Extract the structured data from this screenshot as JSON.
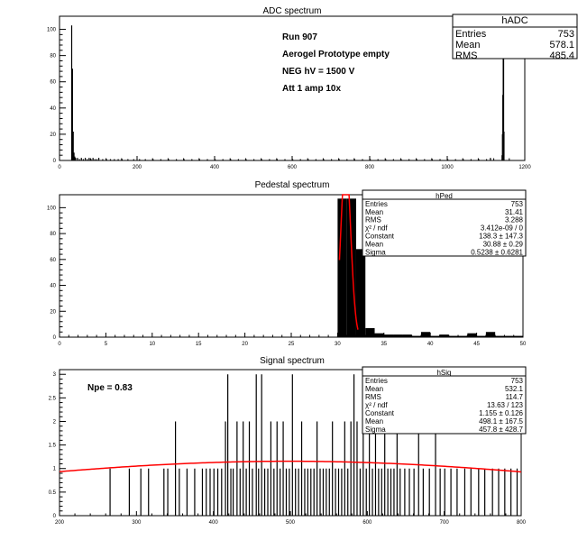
{
  "chart_data": [
    {
      "type": "bar",
      "title": "ADC spectrum",
      "xlim": [
        0,
        1200
      ],
      "ylim": [
        0,
        110
      ],
      "xticks": [
        0,
        200,
        400,
        600,
        800,
        1000,
        1200
      ],
      "yticks": [
        0,
        20,
        40,
        60,
        80,
        100
      ],
      "annotations": [
        "Run  907",
        "Aerogel Prototype empty",
        "NEG hV = 1500 V",
        "Att 1 amp 10x"
      ],
      "stats": {
        "name": "hADC",
        "rows": [
          [
            "Entries",
            "753"
          ],
          [
            "Mean",
            "578.1"
          ],
          [
            "RMS",
            "485.4"
          ]
        ]
      },
      "bins": [
        [
          30,
          103
        ],
        [
          32,
          70
        ],
        [
          34,
          22
        ],
        [
          36,
          6
        ],
        [
          38,
          3
        ],
        [
          40,
          2
        ],
        [
          45,
          2
        ],
        [
          50,
          1
        ],
        [
          55,
          2
        ],
        [
          60,
          1
        ],
        [
          65,
          2
        ],
        [
          70,
          1
        ],
        [
          75,
          2
        ],
        [
          80,
          1
        ],
        [
          85,
          2
        ],
        [
          90,
          1
        ],
        [
          95,
          1
        ],
        [
          100,
          2
        ],
        [
          110,
          1
        ],
        [
          120,
          1
        ],
        [
          130,
          1
        ],
        [
          140,
          1
        ],
        [
          150,
          1
        ],
        [
          160,
          1
        ],
        [
          175,
          1
        ],
        [
          190,
          1
        ],
        [
          205,
          1
        ],
        [
          220,
          1
        ],
        [
          240,
          1
        ],
        [
          260,
          1
        ],
        [
          280,
          1
        ],
        [
          300,
          1
        ],
        [
          320,
          1
        ],
        [
          340,
          1
        ],
        [
          360,
          1
        ],
        [
          380,
          1
        ],
        [
          400,
          1
        ],
        [
          420,
          1
        ],
        [
          440,
          1
        ],
        [
          460,
          1
        ],
        [
          480,
          1
        ],
        [
          500,
          1
        ],
        [
          520,
          1
        ],
        [
          540,
          1
        ],
        [
          560,
          1
        ],
        [
          580,
          1
        ],
        [
          600,
          1
        ],
        [
          620,
          1
        ],
        [
          640,
          1
        ],
        [
          660,
          1
        ],
        [
          680,
          1
        ],
        [
          700,
          1
        ],
        [
          720,
          1
        ],
        [
          740,
          1
        ],
        [
          760,
          1
        ],
        [
          780,
          1
        ],
        [
          800,
          1
        ],
        [
          820,
          1
        ],
        [
          840,
          1
        ],
        [
          860,
          1
        ],
        [
          880,
          1
        ],
        [
          900,
          1
        ],
        [
          920,
          1
        ],
        [
          940,
          1
        ],
        [
          960,
          1
        ],
        [
          980,
          1
        ],
        [
          1000,
          1
        ],
        [
          1020,
          1
        ],
        [
          1040,
          1
        ],
        [
          1060,
          1
        ],
        [
          1080,
          1
        ],
        [
          1100,
          1
        ],
        [
          1110,
          2
        ],
        [
          1140,
          4
        ],
        [
          1141,
          20
        ],
        [
          1142,
          50
        ],
        [
          1143,
          98
        ],
        [
          1144,
          82
        ],
        [
          1145,
          22
        ]
      ]
    },
    {
      "type": "bar",
      "title": "Pedestal spectrum",
      "xlim": [
        0,
        50
      ],
      "ylim": [
        0,
        110
      ],
      "xticks": [
        0,
        5,
        10,
        15,
        20,
        25,
        30,
        35,
        40,
        45,
        50
      ],
      "yticks": [
        0,
        20,
        40,
        60,
        80,
        100
      ],
      "stats": {
        "name": "hPed",
        "rows": [
          [
            "Entries",
            "753"
          ],
          [
            "Mean",
            "31.41"
          ],
          [
            "RMS",
            "3.288"
          ],
          [
            "χ² / ndf",
            "3.412e-09 / 0"
          ],
          [
            "Constant",
            "138.3 ± 147.3"
          ],
          [
            "Mean",
            "30.88 ± 0.29"
          ],
          [
            "Sigma",
            "0.5238 ± 0.6281"
          ]
        ]
      },
      "bins": [
        [
          30,
          107
        ],
        [
          31,
          107
        ],
        [
          32,
          68
        ],
        [
          33,
          7
        ],
        [
          34,
          3
        ],
        [
          35,
          2
        ],
        [
          36,
          2
        ],
        [
          37,
          2
        ],
        [
          38,
          1
        ],
        [
          39,
          4
        ],
        [
          40,
          1
        ],
        [
          41,
          2
        ],
        [
          42,
          1
        ],
        [
          43,
          1
        ],
        [
          44,
          3
        ],
        [
          45,
          1
        ],
        [
          46,
          4
        ],
        [
          47,
          1
        ],
        [
          48,
          1
        ],
        [
          49,
          1
        ]
      ],
      "fit": {
        "type": "gaus",
        "constant": 138.3,
        "mean": 30.88,
        "sigma": 0.5238,
        "color": "#ff0000"
      }
    },
    {
      "type": "bar",
      "title": "Signal spectrum",
      "xlim": [
        200,
        800
      ],
      "ylim": [
        0,
        3.1
      ],
      "xticks": [
        200,
        300,
        400,
        500,
        600,
        700,
        800
      ],
      "yticks": [
        0,
        0.5,
        1,
        1.5,
        2,
        2.5,
        3
      ],
      "annotations": [
        "Npe = 0.83"
      ],
      "stats": {
        "name": "hSig",
        "rows": [
          [
            "Entries",
            "753"
          ],
          [
            "Mean",
            "532.1"
          ],
          [
            "RMS",
            "114.7"
          ],
          [
            "χ² / ndf",
            "13.63 / 123"
          ],
          [
            "Constant",
            "1.155 ± 0.126"
          ],
          [
            "Mean",
            "498.1 ± 167.5"
          ],
          [
            "Sigma",
            "457.8 ± 428.7"
          ]
        ]
      },
      "bins": [
        [
          265,
          1
        ],
        [
          290,
          1
        ],
        [
          305,
          1
        ],
        [
          315,
          1
        ],
        [
          335,
          1
        ],
        [
          340,
          1
        ],
        [
          350,
          2
        ],
        [
          355,
          1
        ],
        [
          365,
          1
        ],
        [
          375,
          1
        ],
        [
          385,
          1
        ],
        [
          390,
          1
        ],
        [
          395,
          1
        ],
        [
          400,
          1
        ],
        [
          405,
          1
        ],
        [
          410,
          1
        ],
        [
          415,
          2
        ],
        [
          418,
          3
        ],
        [
          422,
          1
        ],
        [
          425,
          1
        ],
        [
          430,
          2
        ],
        [
          434,
          1
        ],
        [
          438,
          2
        ],
        [
          442,
          1
        ],
        [
          446,
          2
        ],
        [
          450,
          1
        ],
        [
          455,
          3
        ],
        [
          458,
          1
        ],
        [
          462,
          3
        ],
        [
          466,
          1
        ],
        [
          470,
          1
        ],
        [
          474,
          2
        ],
        [
          478,
          1
        ],
        [
          482,
          2
        ],
        [
          486,
          1
        ],
        [
          490,
          2
        ],
        [
          494,
          1
        ],
        [
          498,
          1
        ],
        [
          502,
          3
        ],
        [
          506,
          1
        ],
        [
          510,
          1
        ],
        [
          514,
          2
        ],
        [
          518,
          1
        ],
        [
          522,
          1
        ],
        [
          526,
          1
        ],
        [
          530,
          1
        ],
        [
          534,
          2
        ],
        [
          538,
          1
        ],
        [
          542,
          1
        ],
        [
          546,
          1
        ],
        [
          550,
          1
        ],
        [
          554,
          2
        ],
        [
          558,
          1
        ],
        [
          562,
          1
        ],
        [
          566,
          1
        ],
        [
          570,
          2
        ],
        [
          574,
          1
        ],
        [
          578,
          2
        ],
        [
          582,
          3
        ],
        [
          586,
          2
        ],
        [
          590,
          1
        ],
        [
          594,
          3
        ],
        [
          598,
          1
        ],
        [
          602,
          2
        ],
        [
          606,
          1
        ],
        [
          610,
          2
        ],
        [
          614,
          1
        ],
        [
          618,
          1
        ],
        [
          622,
          2
        ],
        [
          626,
          1
        ],
        [
          630,
          1
        ],
        [
          634,
          1
        ],
        [
          638,
          2
        ],
        [
          642,
          1
        ],
        [
          648,
          1
        ],
        [
          654,
          1
        ],
        [
          660,
          1
        ],
        [
          666,
          2
        ],
        [
          672,
          1
        ],
        [
          680,
          1
        ],
        [
          688,
          2
        ],
        [
          694,
          1
        ],
        [
          700,
          1
        ],
        [
          708,
          1
        ],
        [
          716,
          1
        ],
        [
          726,
          1
        ],
        [
          734,
          1
        ],
        [
          744,
          1
        ],
        [
          752,
          1
        ],
        [
          762,
          1
        ],
        [
          770,
          1
        ],
        [
          778,
          1
        ],
        [
          786,
          1
        ],
        [
          794,
          1
        ]
      ],
      "fit": {
        "type": "gaus",
        "constant": 1.155,
        "mean": 498.1,
        "sigma": 457.8,
        "color": "#ff0000"
      }
    }
  ]
}
